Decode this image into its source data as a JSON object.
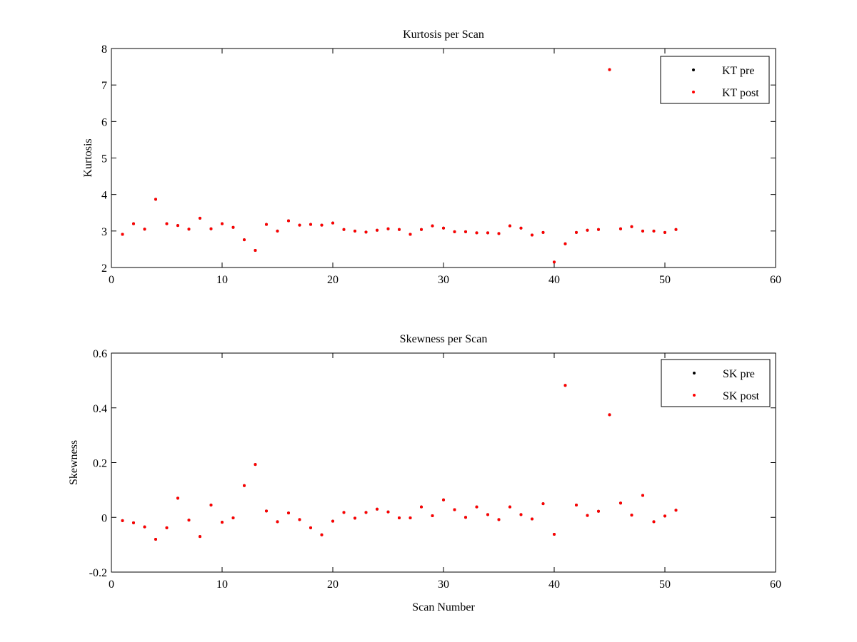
{
  "colors": {
    "pre": "#000000",
    "post": "#ff0000",
    "axes": "#000000",
    "background": "#ffffff"
  },
  "chart_data": [
    {
      "type": "scatter",
      "title": "Kurtosis per Scan",
      "xlabel": "",
      "ylabel": "Kurtosis",
      "xlim": [
        0,
        60
      ],
      "ylim": [
        2,
        8
      ],
      "xticks": [
        0,
        10,
        20,
        30,
        40,
        50,
        60
      ],
      "yticks": [
        2,
        3,
        4,
        5,
        6,
        7,
        8
      ],
      "grid": false,
      "legend_position": "top-right",
      "x": [
        1,
        2,
        3,
        4,
        5,
        6,
        7,
        8,
        9,
        10,
        11,
        12,
        13,
        14,
        15,
        16,
        17,
        18,
        19,
        20,
        21,
        22,
        23,
        24,
        25,
        26,
        27,
        28,
        29,
        30,
        31,
        32,
        33,
        34,
        35,
        36,
        37,
        38,
        39,
        40,
        41,
        42,
        43,
        44,
        45,
        46,
        47,
        48,
        49,
        50,
        51
      ],
      "series": [
        {
          "name": "KT pre",
          "color": "#000000",
          "values": [
            2.91,
            3.2,
            3.05,
            3.87,
            3.2,
            3.15,
            3.05,
            3.35,
            3.06,
            3.2,
            3.1,
            2.76,
            2.47,
            3.18,
            3.0,
            3.28,
            3.16,
            3.18,
            3.16,
            3.22,
            3.04,
            3.0,
            2.97,
            3.02,
            3.06,
            3.04,
            2.91,
            3.04,
            3.14,
            3.08,
            2.98,
            2.98,
            2.95,
            2.95,
            2.93,
            3.14,
            3.08,
            2.89,
            2.96,
            2.15,
            2.65,
            2.96,
            3.02,
            3.04,
            7.42,
            3.06,
            3.12,
            3.0,
            3.0,
            2.96,
            3.04
          ]
        },
        {
          "name": "KT post",
          "color": "#ff0000",
          "values": [
            2.91,
            3.2,
            3.05,
            3.87,
            3.2,
            3.15,
            3.05,
            3.35,
            3.06,
            3.2,
            3.1,
            2.76,
            2.47,
            3.18,
            3.0,
            3.28,
            3.16,
            3.18,
            3.16,
            3.22,
            3.04,
            3.0,
            2.97,
            3.02,
            3.06,
            3.04,
            2.91,
            3.04,
            3.14,
            3.08,
            2.98,
            2.98,
            2.95,
            2.95,
            2.93,
            3.14,
            3.08,
            2.89,
            2.96,
            2.15,
            2.65,
            2.96,
            3.02,
            3.04,
            7.42,
            3.06,
            3.12,
            3.0,
            3.0,
            2.96,
            3.04
          ]
        }
      ]
    },
    {
      "type": "scatter",
      "title": "Skewness per Scan",
      "xlabel": "Scan Number",
      "ylabel": "Skewness",
      "xlim": [
        0,
        60
      ],
      "ylim": [
        -0.2,
        0.6
      ],
      "xticks": [
        0,
        10,
        20,
        30,
        40,
        50,
        60
      ],
      "yticks": [
        -0.2,
        0,
        0.2,
        0.4,
        0.6
      ],
      "ytick_labels": [
        "-0.2",
        "0",
        "0.2",
        "0.4",
        "0.6"
      ],
      "grid": false,
      "legend_position": "top-right",
      "x": [
        1,
        2,
        3,
        4,
        5,
        6,
        7,
        8,
        9,
        10,
        11,
        12,
        13,
        14,
        15,
        16,
        17,
        18,
        19,
        20,
        21,
        22,
        23,
        24,
        25,
        26,
        27,
        28,
        29,
        30,
        31,
        32,
        33,
        34,
        35,
        36,
        37,
        38,
        39,
        40,
        41,
        42,
        43,
        44,
        45,
        46,
        47,
        48,
        49,
        50,
        51
      ],
      "series": [
        {
          "name": "SK pre",
          "color": "#000000",
          "values": [
            -0.012,
            -0.02,
            -0.035,
            -0.08,
            -0.038,
            0.07,
            -0.01,
            -0.07,
            0.045,
            -0.018,
            -0.002,
            0.116,
            0.193,
            0.023,
            -0.016,
            0.016,
            -0.008,
            -0.038,
            -0.064,
            -0.014,
            0.018,
            -0.003,
            0.018,
            0.03,
            0.02,
            -0.002,
            -0.002,
            0.038,
            0.006,
            0.064,
            0.028,
            0.0,
            0.038,
            0.01,
            -0.008,
            0.038,
            0.01,
            -0.006,
            0.05,
            -0.062,
            0.482,
            0.045,
            0.007,
            0.022,
            0.375,
            0.052,
            0.008,
            0.08,
            -0.016,
            0.005,
            0.026
          ]
        },
        {
          "name": "SK post",
          "color": "#ff0000",
          "values": [
            -0.012,
            -0.02,
            -0.035,
            -0.08,
            -0.038,
            0.07,
            -0.01,
            -0.07,
            0.045,
            -0.018,
            -0.002,
            0.116,
            0.193,
            0.023,
            -0.016,
            0.016,
            -0.008,
            -0.038,
            -0.064,
            -0.014,
            0.018,
            -0.003,
            0.018,
            0.03,
            0.02,
            -0.002,
            -0.002,
            0.038,
            0.006,
            0.064,
            0.028,
            0.0,
            0.038,
            0.01,
            -0.008,
            0.038,
            0.01,
            -0.006,
            0.05,
            -0.062,
            0.482,
            0.045,
            0.007,
            0.022,
            0.375,
            0.052,
            0.008,
            0.08,
            -0.016,
            0.005,
            0.026
          ]
        }
      ]
    }
  ]
}
